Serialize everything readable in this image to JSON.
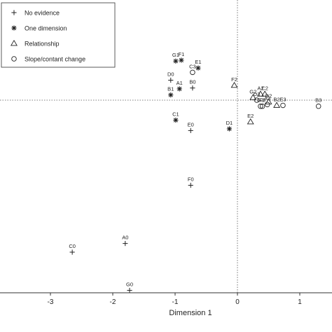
{
  "chart_data": {
    "type": "scatter",
    "title": "",
    "xlabel": "Dimension 1",
    "ylabel": "",
    "xlim": [
      -3.7,
      1.5
    ],
    "ylim": [
      -2.3,
      1.25
    ],
    "xticks": [
      -3,
      -2,
      -1,
      0,
      1
    ],
    "reference_lines": {
      "x": 0,
      "y": 0
    },
    "grid": false,
    "legend_position": "top-left",
    "series": [
      {
        "name": "No evidence",
        "marker": "plus",
        "points": [
          {
            "label": "A0",
            "x": -1.8,
            "y": -1.65
          },
          {
            "label": "B0",
            "x": -0.72,
            "y": 0.14
          },
          {
            "label": "C0",
            "x": -2.65,
            "y": -1.75
          },
          {
            "label": "D0",
            "x": -1.07,
            "y": 0.23
          },
          {
            "label": "E0",
            "x": -0.75,
            "y": -0.35
          },
          {
            "label": "F0",
            "x": -0.75,
            "y": -0.98
          },
          {
            "label": "G0",
            "x": -1.73,
            "y": -2.19
          }
        ]
      },
      {
        "name": "One dimension",
        "marker": "asterisk",
        "points": [
          {
            "label": "A1",
            "x": -0.93,
            "y": 0.13
          },
          {
            "label": "B1",
            "x": -1.07,
            "y": 0.06
          },
          {
            "label": "C1",
            "x": -0.99,
            "y": -0.23
          },
          {
            "label": "D1",
            "x": -0.13,
            "y": -0.33
          },
          {
            "label": "E1",
            "x": -0.63,
            "y": 0.37
          },
          {
            "label": "F1",
            "x": -0.9,
            "y": 0.46
          },
          {
            "label": "G1",
            "x": -0.99,
            "y": 0.45
          }
        ]
      },
      {
        "name": "Relationship",
        "marker": "triangle",
        "points": [
          {
            "label": "A2",
            "x": 0.37,
            "y": 0.07
          },
          {
            "label": "B2",
            "x": 0.63,
            "y": -0.06
          },
          {
            "label": "C2",
            "x": 0.44,
            "y": 0.07
          },
          {
            "label": "D2",
            "x": 0.5,
            "y": -0.02
          },
          {
            "label": "E2",
            "x": 0.21,
            "y": -0.25
          },
          {
            "label": "F2",
            "x": -0.05,
            "y": 0.17
          },
          {
            "label": "G2",
            "x": 0.25,
            "y": 0.03
          }
        ]
      },
      {
        "name": "Slope/contant change",
        "marker": "circle",
        "points": [
          {
            "label": "A3",
            "x": 0.48,
            "y": -0.05
          },
          {
            "label": "B3",
            "x": 1.3,
            "y": -0.07
          },
          {
            "label": "C3",
            "x": -0.72,
            "y": 0.32
          },
          {
            "label": "D3",
            "x": 0.31,
            "y": 0.0
          },
          {
            "label": "E3",
            "x": 0.73,
            "y": -0.06
          },
          {
            "label": "F3",
            "x": 0.4,
            "y": -0.07
          },
          {
            "label": "G3",
            "x": 0.37,
            "y": -0.07
          }
        ]
      }
    ]
  },
  "legend": {
    "items": [
      {
        "label": "No evidence",
        "marker": "plus"
      },
      {
        "label": "One dimension",
        "marker": "asterisk"
      },
      {
        "label": "Relationship",
        "marker": "triangle"
      },
      {
        "label": "Slope/contant change",
        "marker": "circle"
      }
    ]
  }
}
